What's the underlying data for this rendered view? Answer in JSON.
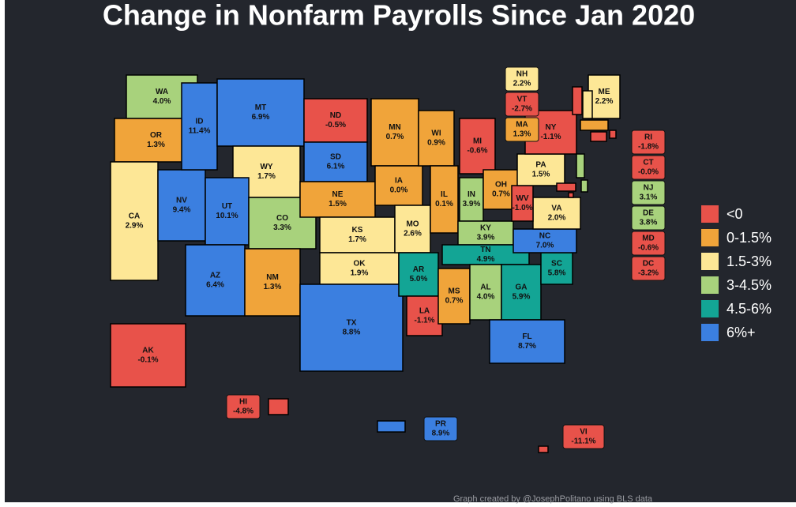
{
  "title": "Change in Nonfarm Payrolls Since Jan 2020",
  "footer": "Graph created by @JosephPolitano using BLS data",
  "legend": [
    {
      "label": "<0",
      "color": "#e8524a"
    },
    {
      "label": "0-1.5%",
      "color": "#f0a43a"
    },
    {
      "label": "1.5-3%",
      "color": "#fde796"
    },
    {
      "label": "3-4.5%",
      "color": "#a8d27c"
    },
    {
      "label": "4.5-6%",
      "color": "#13a595"
    },
    {
      "label": "6%+",
      "color": "#3b7fe0"
    }
  ],
  "states": [
    {
      "abbr": "WA",
      "value": 4.0,
      "value_label": "4.0%",
      "color": "#a8d27c"
    },
    {
      "abbr": "OR",
      "value": 1.3,
      "value_label": "1.3%",
      "color": "#f0a43a"
    },
    {
      "abbr": "CA",
      "value": 2.9,
      "value_label": "2.9%",
      "color": "#fde796"
    },
    {
      "abbr": "NV",
      "value": 9.4,
      "value_label": "9.4%",
      "color": "#3b7fe0"
    },
    {
      "abbr": "ID",
      "value": 11.4,
      "value_label": "11.4%",
      "color": "#3b7fe0"
    },
    {
      "abbr": "MT",
      "value": 6.9,
      "value_label": "6.9%",
      "color": "#3b7fe0"
    },
    {
      "abbr": "WY",
      "value": 1.7,
      "value_label": "1.7%",
      "color": "#fde796"
    },
    {
      "abbr": "UT",
      "value": 10.1,
      "value_label": "10.1%",
      "color": "#3b7fe0"
    },
    {
      "abbr": "AZ",
      "value": 6.4,
      "value_label": "6.4%",
      "color": "#3b7fe0"
    },
    {
      "abbr": "CO",
      "value": 3.3,
      "value_label": "3.3%",
      "color": "#a8d27c"
    },
    {
      "abbr": "NM",
      "value": 1.3,
      "value_label": "1.3%",
      "color": "#f0a43a"
    },
    {
      "abbr": "ND",
      "value": -0.5,
      "value_label": "-0.5%",
      "color": "#e8524a"
    },
    {
      "abbr": "SD",
      "value": 6.1,
      "value_label": "6.1%",
      "color": "#3b7fe0"
    },
    {
      "abbr": "NE",
      "value": 1.5,
      "value_label": "1.5%",
      "color": "#f0a43a"
    },
    {
      "abbr": "KS",
      "value": 1.7,
      "value_label": "1.7%",
      "color": "#fde796"
    },
    {
      "abbr": "OK",
      "value": 1.9,
      "value_label": "1.9%",
      "color": "#fde796"
    },
    {
      "abbr": "TX",
      "value": 8.8,
      "value_label": "8.8%",
      "color": "#3b7fe0"
    },
    {
      "abbr": "MN",
      "value": 0.7,
      "value_label": "0.7%",
      "color": "#f0a43a"
    },
    {
      "abbr": "IA",
      "value": 0.0,
      "value_label": "0.0%",
      "color": "#f0a43a"
    },
    {
      "abbr": "MO",
      "value": 2.6,
      "value_label": "2.6%",
      "color": "#fde796"
    },
    {
      "abbr": "AR",
      "value": 5.0,
      "value_label": "5.0%",
      "color": "#13a595"
    },
    {
      "abbr": "LA",
      "value": -1.1,
      "value_label": "-1.1%",
      "color": "#e8524a"
    },
    {
      "abbr": "WI",
      "value": 0.9,
      "value_label": "0.9%",
      "color": "#f0a43a"
    },
    {
      "abbr": "IL",
      "value": 0.1,
      "value_label": "0.1%",
      "color": "#f0a43a"
    },
    {
      "abbr": "MI",
      "value": -0.6,
      "value_label": "-0.6%",
      "color": "#e8524a"
    },
    {
      "abbr": "IN",
      "value": 3.9,
      "value_label": "3.9%",
      "color": "#a8d27c"
    },
    {
      "abbr": "OH",
      "value": 0.7,
      "value_label": "0.7%",
      "color": "#f0a43a"
    },
    {
      "abbr": "KY",
      "value": 3.9,
      "value_label": "3.9%",
      "color": "#a8d27c"
    },
    {
      "abbr": "TN",
      "value": 4.9,
      "value_label": "4.9%",
      "color": "#13a595"
    },
    {
      "abbr": "MS",
      "value": 0.7,
      "value_label": "0.7%",
      "color": "#f0a43a"
    },
    {
      "abbr": "AL",
      "value": 4.0,
      "value_label": "4.0%",
      "color": "#a8d27c"
    },
    {
      "abbr": "GA",
      "value": 5.9,
      "value_label": "5.9%",
      "color": "#13a595"
    },
    {
      "abbr": "FL",
      "value": 8.7,
      "value_label": "8.7%",
      "color": "#3b7fe0"
    },
    {
      "abbr": "SC",
      "value": 5.8,
      "value_label": "5.8%",
      "color": "#13a595"
    },
    {
      "abbr": "NC",
      "value": 7.0,
      "value_label": "7.0%",
      "color": "#3b7fe0"
    },
    {
      "abbr": "VA",
      "value": 2.0,
      "value_label": "2.0%",
      "color": "#fde796"
    },
    {
      "abbr": "WV",
      "value": -1.0,
      "value_label": "-1.0%",
      "color": "#e8524a"
    },
    {
      "abbr": "PA",
      "value": 1.5,
      "value_label": "1.5%",
      "color": "#fde796"
    },
    {
      "abbr": "NY",
      "value": -1.1,
      "value_label": "-1.1%",
      "color": "#e8524a"
    },
    {
      "abbr": "ME",
      "value": 2.2,
      "value_label": "2.2%",
      "color": "#fde796"
    },
    {
      "abbr": "AK",
      "value": -0.1,
      "value_label": "-0.1%",
      "color": "#e8524a"
    },
    {
      "abbr": "NH",
      "value": 2.2,
      "value_label": "2.2%",
      "color": "#fde796"
    },
    {
      "abbr": "VT",
      "value": -2.7,
      "value_label": "-2.7%",
      "color": "#e8524a"
    },
    {
      "abbr": "MA",
      "value": 1.3,
      "value_label": "1.3%",
      "color": "#f0a43a"
    },
    {
      "abbr": "RI",
      "value": -1.8,
      "value_label": "-1.8%",
      "color": "#e8524a"
    },
    {
      "abbr": "CT",
      "value": -0.0,
      "value_label": "-0.0%",
      "color": "#e8524a"
    },
    {
      "abbr": "NJ",
      "value": 3.1,
      "value_label": "3.1%",
      "color": "#a8d27c"
    },
    {
      "abbr": "DE",
      "value": 3.8,
      "value_label": "3.8%",
      "color": "#a8d27c"
    },
    {
      "abbr": "MD",
      "value": -0.6,
      "value_label": "-0.6%",
      "color": "#e8524a"
    },
    {
      "abbr": "DC",
      "value": -3.2,
      "value_label": "-3.2%",
      "color": "#e8524a"
    },
    {
      "abbr": "HI",
      "value": -4.8,
      "value_label": "-4.8%",
      "color": "#e8524a"
    },
    {
      "abbr": "PR",
      "value": 8.9,
      "value_label": "8.9%",
      "color": "#3b7fe0"
    },
    {
      "abbr": "VI",
      "value": -11.1,
      "value_label": "-11.1%",
      "color": "#e8524a"
    }
  ]
}
